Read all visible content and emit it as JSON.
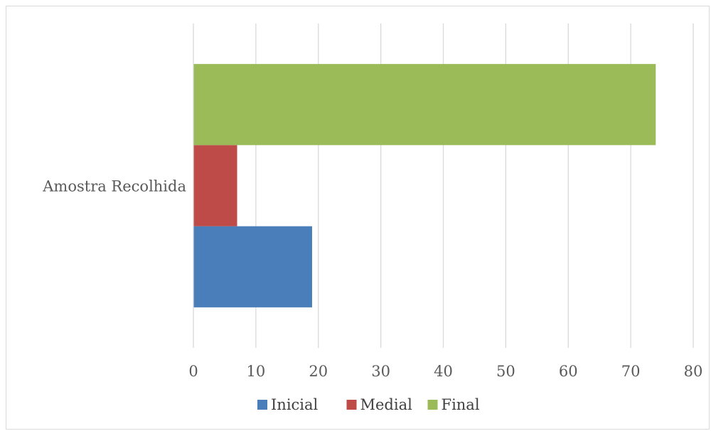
{
  "chart_data": {
    "type": "bar",
    "orientation": "horizontal",
    "title": "",
    "xlabel": "",
    "ylabel": "",
    "categories": [
      "Amostra Recolhida"
    ],
    "series": [
      {
        "name": "Inicial",
        "values": [
          19
        ],
        "color": "#4a7ebb"
      },
      {
        "name": "Medial",
        "values": [
          7
        ],
        "color": "#be4b48"
      },
      {
        "name": "Final",
        "values": [
          74
        ],
        "color": "#9bbb59"
      }
    ],
    "xlim": [
      0,
      80
    ],
    "x_ticks": [
      "0",
      "10",
      "20",
      "30",
      "40",
      "50",
      "60",
      "70",
      "80"
    ],
    "grid": true,
    "legend_position": "bottom"
  }
}
